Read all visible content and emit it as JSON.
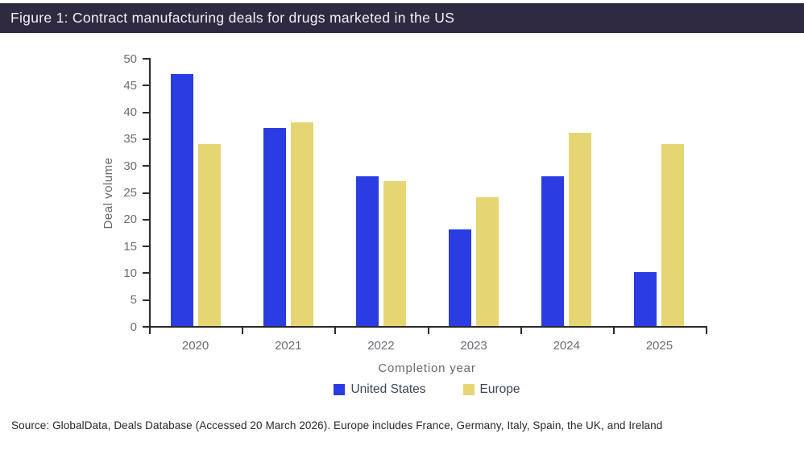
{
  "header": {
    "title": "Figure 1: Contract manufacturing deals for drugs marketed in the US",
    "bar_color": "#2f2a41",
    "text_color": "#f4f1f6"
  },
  "chart_data": {
    "type": "bar",
    "categories": [
      "2020",
      "2021",
      "2022",
      "2023",
      "2024",
      "2025"
    ],
    "series": [
      {
        "name": "United States",
        "color": "#2a3ce2",
        "values": [
          47,
          37,
          28,
          18,
          28,
          10
        ]
      },
      {
        "name": "Europe",
        "color": "#e5d673",
        "values": [
          34,
          38,
          27,
          24,
          36,
          34
        ]
      }
    ],
    "title": "",
    "xlabel": "Completion  year",
    "ylabel": "Deal volume",
    "ylim": [
      0,
      50
    ],
    "ytick_step": 5,
    "yticks": [
      0,
      5,
      10,
      15,
      20,
      25,
      30,
      35,
      40,
      45,
      50
    ],
    "grid": false,
    "legend_position": "bottom"
  },
  "footer": {
    "source": "Source: GlobalData, Deals Database (Accessed 20 March 2026). Europe includes France, Germany, Italy, Spain, the UK, and Ireland"
  }
}
